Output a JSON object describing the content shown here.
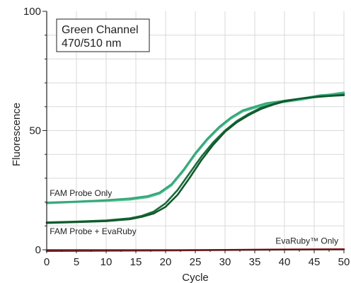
{
  "chart_data": {
    "type": "line",
    "xlabel": "Cycle",
    "ylabel": "Fluorescence",
    "xlim": [
      0,
      50
    ],
    "ylim": [
      0,
      100
    ],
    "xticks": [
      0,
      5,
      10,
      15,
      20,
      25,
      30,
      35,
      40,
      45,
      50
    ],
    "yticks": [
      0,
      50,
      100
    ],
    "grid": true,
    "channel_box": {
      "line1": "Green Channel",
      "line2": "470/510 nm"
    },
    "annotations": [
      {
        "text": "FAM Probe Only",
        "x": 0.5,
        "y": 22.5
      },
      {
        "text": "FAM Probe + EvaRuby",
        "x": 0.5,
        "y": 6.5
      },
      {
        "text": "EvaRuby™ Only",
        "x": 38.5,
        "y": 2.5
      }
    ],
    "series": [
      {
        "color": "#4dbf93",
        "x": [
          0,
          5,
          10,
          14,
          17,
          19,
          21,
          23,
          25,
          27,
          29,
          31,
          33,
          35,
          37,
          40,
          43,
          46,
          50
        ],
        "y": [
          19.5,
          20,
          20.5,
          21,
          22,
          23.5,
          27,
          33,
          40,
          46,
          51,
          55,
          58,
          59.5,
          61,
          62,
          63,
          64.5,
          66
        ]
      },
      {
        "color": "#3aa67a",
        "x": [
          0,
          5,
          10,
          14,
          17,
          19,
          21,
          23,
          25,
          27,
          29,
          31,
          33,
          35,
          37,
          40,
          43,
          46,
          50
        ],
        "y": [
          19.8,
          20.2,
          20.8,
          21.5,
          22.5,
          24,
          27.5,
          33.5,
          40.5,
          46.5,
          51.5,
          55.5,
          58.5,
          60,
          61.5,
          62.5,
          63.5,
          64.8,
          65.5
        ]
      },
      {
        "color": "#1a6b3a",
        "x": [
          0,
          5,
          10,
          14,
          16,
          18,
          20,
          22,
          24,
          26,
          28,
          30,
          32,
          34,
          36,
          38,
          40,
          43,
          46,
          50
        ],
        "y": [
          11.5,
          11.8,
          12.3,
          13.2,
          14.2,
          16,
          19.5,
          25,
          32,
          39,
          45,
          50,
          54,
          57,
          59.5,
          61,
          62.5,
          63.5,
          64.2,
          65
        ]
      },
      {
        "color": "#0f5a2c",
        "x": [
          0,
          5,
          10,
          14,
          16,
          18,
          20,
          22,
          24,
          26,
          28,
          30,
          32,
          34,
          36,
          38,
          40,
          43,
          46,
          50
        ],
        "y": [
          11.2,
          11.6,
          12.0,
          12.8,
          13.8,
          15.2,
          18,
          23,
          30,
          37.5,
          44,
          49.5,
          53.5,
          56.5,
          59,
          60.8,
          62.2,
          63.5,
          64.3,
          64.8
        ]
      },
      {
        "color": "#8b1a1a",
        "x": [
          0,
          10,
          20,
          30,
          40,
          50
        ],
        "y": [
          -0.5,
          -0.4,
          -0.3,
          -0.1,
          0.1,
          0.2
        ]
      }
    ]
  }
}
